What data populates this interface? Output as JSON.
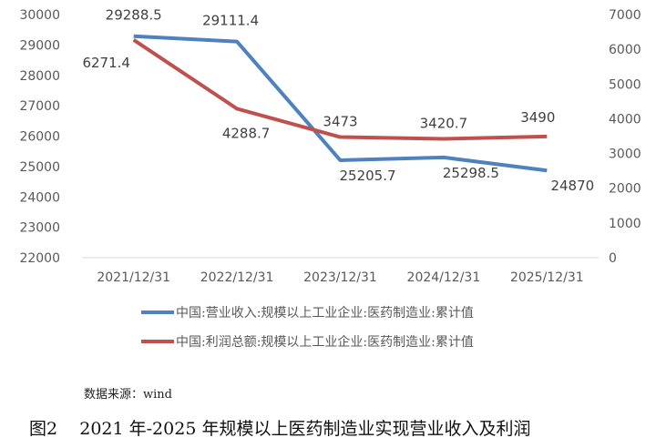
{
  "chart_data": {
    "type": "line",
    "categories": [
      "2021/12/31",
      "2022/12/31",
      "2023/12/31",
      "2024/12/31",
      "2025/12/31"
    ],
    "series": [
      {
        "name": "中国:营业收入:规模以上工业企业:医药制造业:累计值",
        "axis": "left",
        "color": "#4f81bd",
        "values": [
          29288.5,
          29111.4,
          25205.7,
          25298.5,
          24870
        ],
        "labels": [
          "29288.5",
          "29111.4",
          "25205.7",
          "25298.5",
          "24870"
        ]
      },
      {
        "name": "中国:利润总额:规模以上工业企业:医药制造业:累计值",
        "axis": "right",
        "color": "#c0504d",
        "values": [
          6271.4,
          4288.7,
          3473,
          3420.7,
          3490
        ],
        "labels": [
          "6271.4",
          "4288.7",
          "3473",
          "3420.7",
          "3490"
        ]
      }
    ],
    "y_left": {
      "min": 22000,
      "max": 30000,
      "step": 1000,
      "ticks": [
        "22000",
        "23000",
        "24000",
        "25000",
        "26000",
        "27000",
        "28000",
        "29000",
        "30000"
      ]
    },
    "y_right": {
      "min": 0,
      "max": 7000,
      "step": 1000,
      "ticks": [
        "0",
        "1000",
        "2000",
        "3000",
        "4000",
        "5000",
        "6000",
        "7000"
      ]
    },
    "grid": false,
    "legend": "bottom"
  },
  "source": "数据来源：wind",
  "caption": "图2    2021 年-2025 年规模以上医药制造业实现营业收入及利润"
}
